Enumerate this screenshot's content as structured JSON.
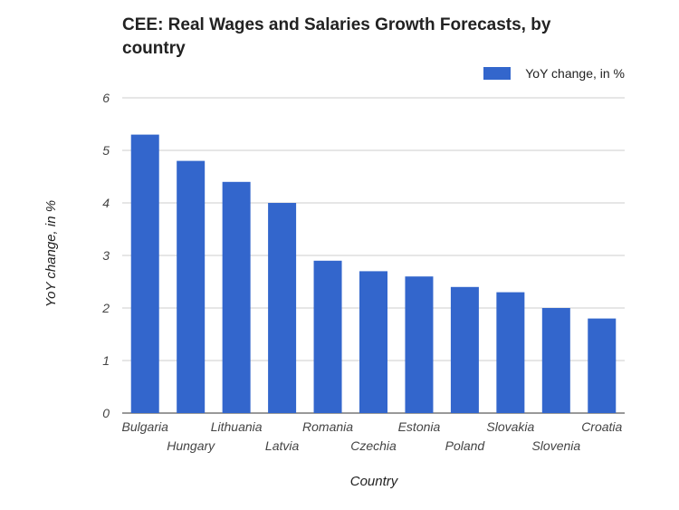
{
  "chart_data": {
    "type": "bar",
    "title": "CEE: Real Wages and Salaries Growth Forecasts, by country",
    "xlabel": "Country",
    "ylabel": "YoY change, in %",
    "categories": [
      "Bulgaria",
      "Hungary",
      "Lithuania",
      "Latvia",
      "Romania",
      "Czechia",
      "Estonia",
      "Poland",
      "Slovakia",
      "Slovenia",
      "Croatia"
    ],
    "series": [
      {
        "name": "YoY change, in %",
        "values": [
          5.3,
          4.8,
          4.4,
          4.0,
          2.9,
          2.7,
          2.6,
          2.4,
          2.3,
          2.0,
          1.8
        ],
        "color": "#3366cc"
      }
    ],
    "ylim": [
      0,
      6
    ],
    "yticks": [
      "0",
      "1",
      "2",
      "3",
      "4",
      "5",
      "6"
    ],
    "grid": true,
    "legend": "top-right"
  }
}
